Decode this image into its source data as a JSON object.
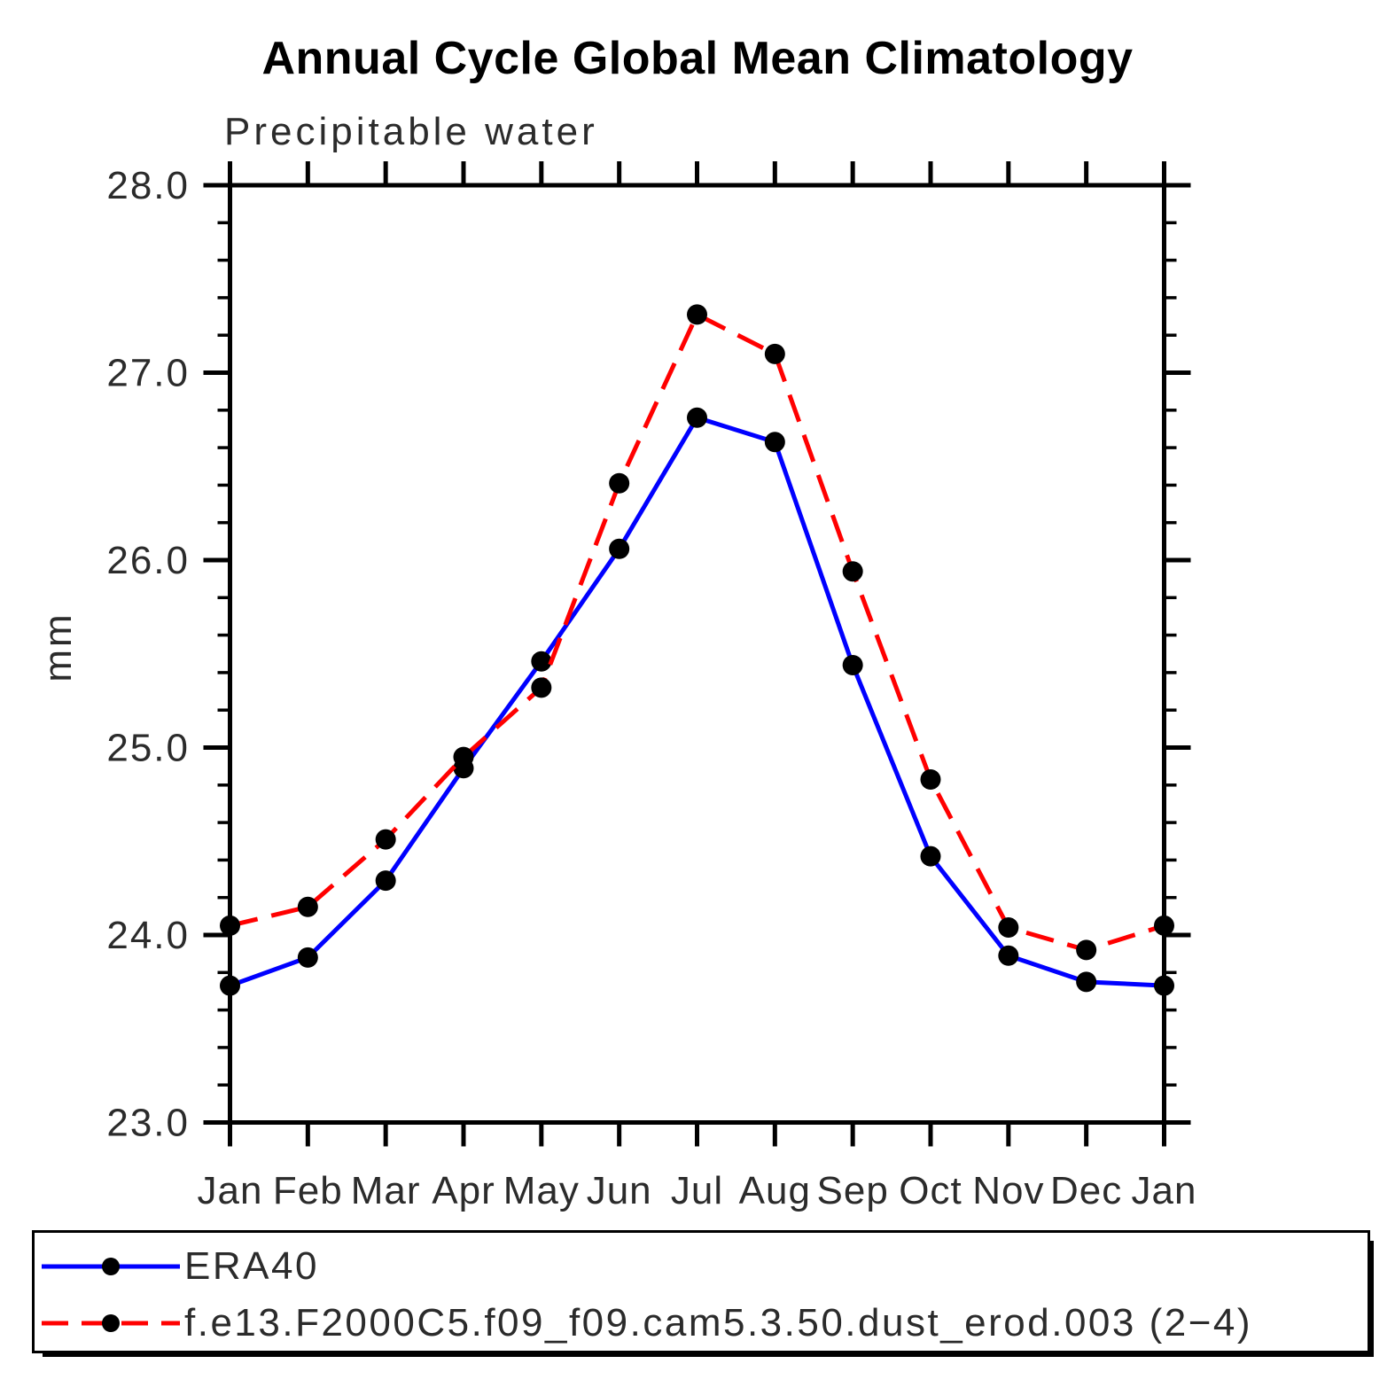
{
  "title": "Annual Cycle Global Mean Climatology",
  "subtitle": "Precipitable water",
  "ylabel": "mm",
  "chart_data": {
    "type": "line",
    "categories": [
      "Jan",
      "Feb",
      "Mar",
      "Apr",
      "May",
      "Jun",
      "Jul",
      "Aug",
      "Sep",
      "Oct",
      "Nov",
      "Dec",
      "Jan"
    ],
    "series": [
      {
        "name": "ERA40",
        "color": "#0000ff",
        "line_style": "solid",
        "marker": "filled-circle",
        "marker_color": "#000000",
        "values": [
          23.73,
          23.88,
          24.29,
          24.89,
          25.46,
          26.06,
          26.76,
          26.63,
          25.44,
          24.42,
          23.89,
          23.75,
          23.73
        ]
      },
      {
        "name": "f.e13.F2000C5.f09_f09.cam5.3.50.dust_erod.003 (2−4)",
        "color": "#ff0000",
        "line_style": "dashed",
        "marker": "filled-circle",
        "marker_color": "#000000",
        "values": [
          24.05,
          24.15,
          24.51,
          24.95,
          25.32,
          26.41,
          27.31,
          27.1,
          25.94,
          24.83,
          24.04,
          23.92,
          24.05
        ]
      }
    ],
    "xlabel": "",
    "ylim": [
      23.0,
      28.0
    ],
    "ytick_major": 1.0,
    "ytick_minor": 0.2,
    "ytick_labels": [
      "23.0",
      "24.0",
      "25.0",
      "26.0",
      "27.0",
      "28.0"
    ],
    "grid": false,
    "legend_position": "bottom"
  },
  "colors": {
    "axis": "#000000",
    "text": "#2b2b2b",
    "background": "#ffffff",
    "series_blue": "#0000ff",
    "series_red": "#ff0000",
    "marker_black": "#000000"
  }
}
